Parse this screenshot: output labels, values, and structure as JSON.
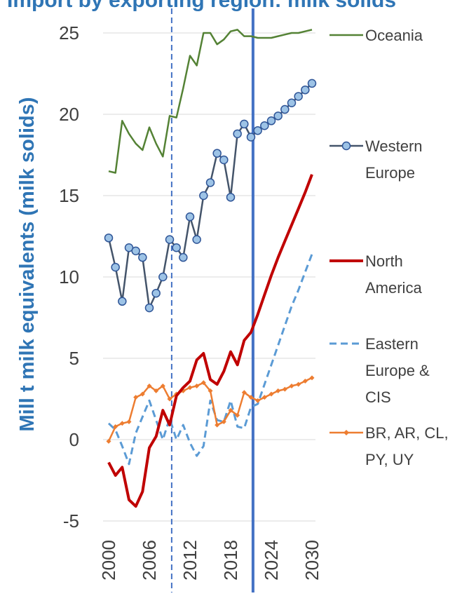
{
  "chart_data": {
    "type": "line",
    "title": "",
    "title_partial": "Import by exporting region: milk solids",
    "ylabel": "Mill t milk equivalents (milk solids)",
    "xlabel": "",
    "ylim": [
      -5,
      25
    ],
    "yticks": [
      -5,
      0,
      5,
      10,
      15,
      20,
      25
    ],
    "xlim": [
      2000,
      2030
    ],
    "xticks": [
      2000,
      2006,
      2012,
      2018,
      2024,
      2030
    ],
    "grid": "horizontal",
    "legend_position": "right",
    "reference_lines": [
      {
        "x": 2009.3,
        "style": "dashed",
        "color": "#4472c4"
      },
      {
        "x": 2021.3,
        "style": "solid",
        "color": "#4472c4"
      }
    ],
    "series": [
      {
        "name": "Oceania",
        "legend_label_lines": [
          "Oceania"
        ],
        "color": "#548235",
        "style": "solid",
        "marker": "none",
        "x": [
          2000,
          2001,
          2002,
          2003,
          2004,
          2005,
          2006,
          2007,
          2008,
          2009,
          2010,
          2011,
          2012,
          2013,
          2014,
          2015,
          2016,
          2017,
          2018,
          2019,
          2020,
          2021,
          2022,
          2023,
          2024,
          2025,
          2026,
          2027,
          2028,
          2029,
          2030
        ],
        "y": [
          16.5,
          16.4,
          19.6,
          18.8,
          18.2,
          17.8,
          19.2,
          18.2,
          17.4,
          19.9,
          19.8,
          21.6,
          23.6,
          23.0,
          25.0,
          25.0,
          24.3,
          24.6,
          25.1,
          25.2,
          24.8,
          24.8,
          24.7,
          24.7,
          24.7,
          24.8,
          24.9,
          25.0,
          25.0,
          25.1,
          25.2
        ]
      },
      {
        "name": "Western Europe",
        "legend_label_lines": [
          "Western",
          "Europe"
        ],
        "color": "#44546a",
        "marker_fill": "#9dc3e6",
        "style": "solid",
        "marker": "circle",
        "x": [
          2000,
          2001,
          2002,
          2003,
          2004,
          2005,
          2006,
          2007,
          2008,
          2009,
          2010,
          2011,
          2012,
          2013,
          2014,
          2015,
          2016,
          2017,
          2018,
          2019,
          2020,
          2021,
          2022,
          2023,
          2024,
          2025,
          2026,
          2027,
          2028,
          2029,
          2030
        ],
        "y": [
          12.4,
          10.6,
          8.5,
          11.8,
          11.6,
          11.2,
          8.1,
          9.0,
          10.0,
          12.3,
          11.8,
          11.2,
          13.7,
          12.3,
          15.0,
          15.8,
          17.6,
          17.2,
          14.9,
          18.8,
          19.4,
          18.6,
          19.0,
          19.3,
          19.6,
          19.9,
          20.3,
          20.7,
          21.1,
          21.5,
          21.9
        ]
      },
      {
        "name": "North America",
        "legend_label_lines": [
          "North",
          "America"
        ],
        "color": "#c00000",
        "style": "solid",
        "marker": "none",
        "x": [
          2000,
          2001,
          2002,
          2003,
          2004,
          2005,
          2006,
          2007,
          2008,
          2009,
          2010,
          2011,
          2012,
          2013,
          2014,
          2015,
          2016,
          2017,
          2018,
          2019,
          2020,
          2021,
          2022,
          2023,
          2024,
          2025,
          2026,
          2027,
          2028,
          2029,
          2030
        ],
        "y": [
          -1.4,
          -2.2,
          -1.7,
          -3.7,
          -4.1,
          -3.2,
          -0.5,
          0.2,
          1.8,
          0.9,
          2.7,
          3.2,
          3.6,
          4.9,
          5.3,
          3.7,
          3.4,
          4.2,
          5.4,
          4.6,
          6.1,
          6.6,
          7.7,
          8.9,
          10.1,
          11.2,
          12.2,
          13.2,
          14.2,
          15.2,
          16.3
        ]
      },
      {
        "name": "Eastern Europe & CIS",
        "legend_label_lines": [
          "Eastern",
          "Europe &",
          "CIS"
        ],
        "color": "#5b9bd5",
        "style": "dashed",
        "marker": "none",
        "x": [
          2000,
          2001,
          2002,
          2003,
          2004,
          2005,
          2006,
          2007,
          2008,
          2009,
          2010,
          2011,
          2012,
          2013,
          2014,
          2015,
          2016,
          2017,
          2018,
          2019,
          2020,
          2021,
          2022,
          2023,
          2024,
          2025,
          2026,
          2027,
          2028,
          2029,
          2030
        ],
        "y": [
          1.0,
          0.6,
          -0.4,
          -1.5,
          0.4,
          1.4,
          2.4,
          1.2,
          0.0,
          1.3,
          0.0,
          0.9,
          -0.2,
          -1.0,
          -0.4,
          2.4,
          1.2,
          1.1,
          2.4,
          0.8,
          0.7,
          2.0,
          2.2,
          3.4,
          4.6,
          5.8,
          7.0,
          8.2,
          9.2,
          10.3,
          11.4
        ]
      },
      {
        "name": "BR, AR, CL, PY, UY",
        "legend_label_lines": [
          "BR, AR, CL,",
          "PY, UY"
        ],
        "color": "#ed7d31",
        "style": "solid",
        "marker": "small-diamond",
        "x": [
          2000,
          2001,
          2002,
          2003,
          2004,
          2005,
          2006,
          2007,
          2008,
          2009,
          2010,
          2011,
          2012,
          2013,
          2014,
          2015,
          2016,
          2017,
          2018,
          2019,
          2020,
          2021,
          2022,
          2023,
          2024,
          2025,
          2026,
          2027,
          2028,
          2029,
          2030
        ],
        "y": [
          -0.1,
          0.8,
          1.0,
          1.1,
          2.6,
          2.8,
          3.3,
          3.0,
          3.3,
          2.5,
          2.8,
          3.0,
          3.2,
          3.3,
          3.5,
          3.0,
          0.9,
          1.1,
          1.8,
          1.5,
          2.9,
          2.6,
          2.4,
          2.6,
          2.8,
          3.0,
          3.1,
          3.3,
          3.4,
          3.6,
          3.8
        ]
      }
    ]
  }
}
